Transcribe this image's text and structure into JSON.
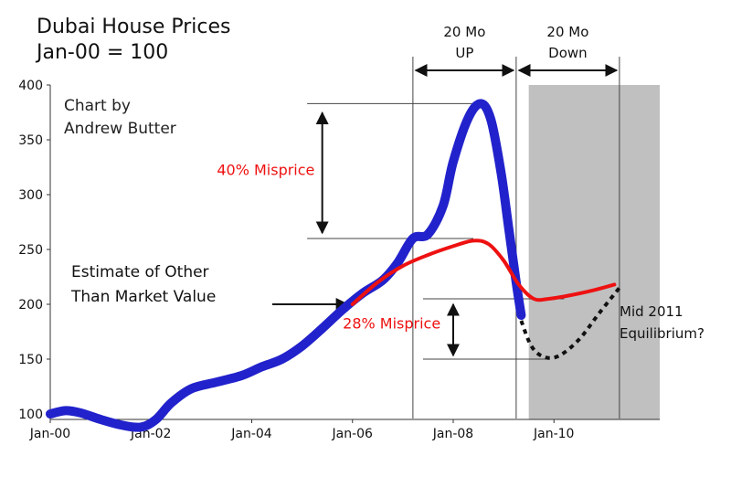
{
  "chart_data": {
    "type": "line",
    "title_line1": "Dubai House Prices",
    "title_line2": "Jan-00 = 100",
    "credit_line1": "Chart by",
    "credit_line2": "Andrew Butter",
    "ylim": [
      95,
      400
    ],
    "y_ticks": [
      100,
      150,
      200,
      250,
      300,
      350,
      400
    ],
    "x_ticks": [
      "Jan-00",
      "Jan-02",
      "Jan-04",
      "Jan-06",
      "Jan-08",
      "Jan-10"
    ],
    "x_tick_years": [
      2000,
      2002,
      2004,
      2006,
      2008,
      2010
    ],
    "xlim": [
      2000,
      2012.1
    ],
    "grid": false,
    "series": [
      {
        "role": "price",
        "color": "#2222cc",
        "x": [
          2000.0,
          2000.3,
          2000.6,
          2001.0,
          2001.4,
          2001.8,
          2002.1,
          2002.4,
          2002.8,
          2003.3,
          2003.8,
          2004.2,
          2004.6,
          2005.0,
          2005.4,
          2005.8,
          2006.2,
          2006.6,
          2006.9,
          2007.2,
          2007.5,
          2007.8,
          2008.0,
          2008.3,
          2008.55,
          2008.75,
          2008.95,
          2009.1,
          2009.25,
          2009.35
        ],
        "y": [
          100,
          103,
          101,
          95,
          90,
          88,
          95,
          110,
          123,
          129,
          135,
          143,
          150,
          162,
          178,
          195,
          210,
          222,
          238,
          260,
          264,
          290,
          330,
          370,
          383,
          368,
          320,
          270,
          220,
          190
        ]
      },
      {
        "role": "estimate",
        "color": "#ee1111",
        "x": [
          2006.0,
          2006.5,
          2007.0,
          2007.5,
          2008.0,
          2008.4,
          2008.7,
          2009.0,
          2009.3,
          2009.6,
          2009.9,
          2010.3,
          2010.8,
          2011.2
        ],
        "y": [
          200,
          220,
          235,
          245,
          253,
          258,
          255,
          240,
          218,
          205,
          205,
          208,
          213,
          218
        ]
      },
      {
        "role": "forecast",
        "color": "#111111",
        "x": [
          2009.35,
          2009.55,
          2009.8,
          2010.1,
          2010.5,
          2010.9,
          2011.3
        ],
        "y": [
          185,
          162,
          152,
          153,
          168,
          192,
          215
        ]
      }
    ],
    "annotations": {
      "mispricing_40": "40% Misprice",
      "mispricing_28": "28% Misprice",
      "estimate_line1": "Estimate of Other",
      "estimate_line2": "Than Market Value",
      "up_line1": "20 Mo",
      "up_line2": "UP",
      "down_line1": "20 Mo",
      "down_line2": "Down",
      "mid_line1": "Mid 2011",
      "mid_line2": "Equilibrium?"
    },
    "shaded_region": {
      "from": 2009.5,
      "to": 2012.1,
      "color": "#c0c0c0"
    }
  }
}
